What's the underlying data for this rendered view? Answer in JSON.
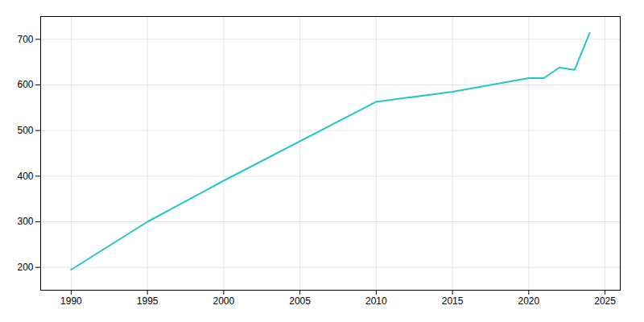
{
  "chart_data": {
    "type": "line",
    "x": [
      1990,
      1995,
      2000,
      2010,
      2015,
      2020,
      2021,
      2022,
      2023,
      2024
    ],
    "values": [
      195,
      300,
      390,
      563,
      585,
      615,
      615,
      638,
      633,
      714
    ],
    "color": "#26c6c6",
    "xlim": [
      1988,
      2026
    ],
    "ylim": [
      150,
      750
    ],
    "xticks": [
      1990,
      1995,
      2000,
      2005,
      2010,
      2015,
      2020,
      2025
    ],
    "yticks": [
      200,
      300,
      400,
      500,
      600,
      700
    ],
    "grid": true
  }
}
